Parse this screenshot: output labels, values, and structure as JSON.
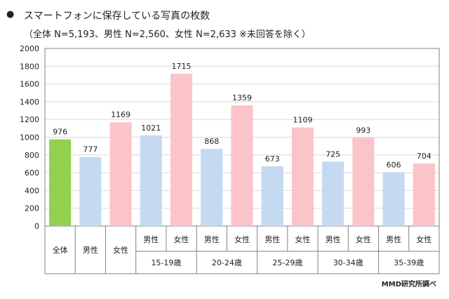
{
  "header": {
    "bullet": "●",
    "title": "スマートフォンに保存している写真の枚数",
    "subtitle": "（全体 N=5,193、男性 N=2,560、女性 N=2,633 ※未回答を除く）"
  },
  "source": "MMD研究所調べ",
  "colors": {
    "all": "#92d050",
    "male": "#c5d9f1",
    "female": "#fbc4c8",
    "grid": "#d9d9d9",
    "axis": "#808080"
  },
  "chart_data": {
    "type": "bar",
    "title": "スマートフォンに保存している写真の枚数",
    "ylim": [
      0,
      2000
    ],
    "yticks": [
      0,
      200,
      400,
      600,
      800,
      1000,
      1200,
      1400,
      1600,
      1800,
      2000
    ],
    "groups": [
      {
        "label": "全体",
        "bars": [
          {
            "sub": "",
            "value": 976,
            "kind": "all"
          }
        ]
      },
      {
        "label": "男性",
        "bars": [
          {
            "sub": "",
            "value": 777,
            "kind": "male"
          }
        ]
      },
      {
        "label": "女性",
        "bars": [
          {
            "sub": "",
            "value": 1169,
            "kind": "female"
          }
        ]
      },
      {
        "label": "15-19歳",
        "bars": [
          {
            "sub": "男性",
            "value": 1021,
            "kind": "male"
          },
          {
            "sub": "女性",
            "value": 1715,
            "kind": "female"
          }
        ]
      },
      {
        "label": "20-24歳",
        "bars": [
          {
            "sub": "男性",
            "value": 868,
            "kind": "male"
          },
          {
            "sub": "女性",
            "value": 1359,
            "kind": "female"
          }
        ]
      },
      {
        "label": "25-29歳",
        "bars": [
          {
            "sub": "男性",
            "value": 673,
            "kind": "male"
          },
          {
            "sub": "女性",
            "value": 1109,
            "kind": "female"
          }
        ]
      },
      {
        "label": "30-34歳",
        "bars": [
          {
            "sub": "男性",
            "value": 725,
            "kind": "male"
          },
          {
            "sub": "女性",
            "value": 993,
            "kind": "female"
          }
        ]
      },
      {
        "label": "35-39歳",
        "bars": [
          {
            "sub": "男性",
            "value": 606,
            "kind": "male"
          },
          {
            "sub": "女性",
            "value": 704,
            "kind": "female"
          }
        ]
      }
    ]
  }
}
